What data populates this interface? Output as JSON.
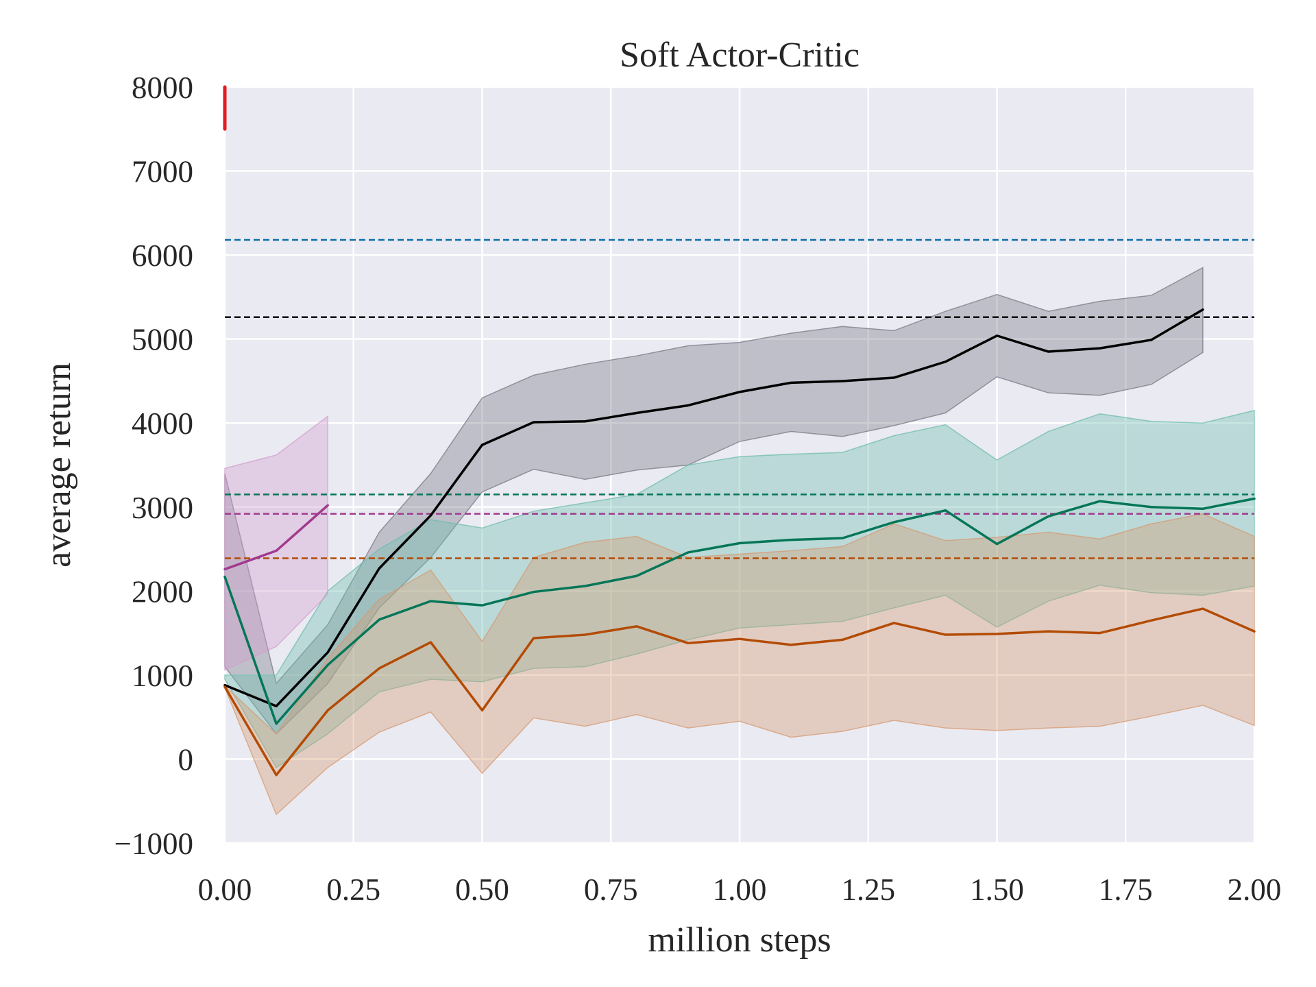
{
  "chart_data": {
    "type": "line",
    "title": "Soft Actor-Critic",
    "xlabel": "million steps",
    "ylabel": "average return",
    "xlim": [
      0,
      2
    ],
    "ylim": [
      -1000,
      8000
    ],
    "xticks": [
      "0.00",
      "0.25",
      "0.50",
      "0.75",
      "1.00",
      "1.25",
      "1.50",
      "1.75",
      "2.00"
    ],
    "yticks": [
      "−1000",
      "0",
      "1000",
      "2000",
      "3000",
      "4000",
      "5000",
      "6000",
      "7000",
      "8000"
    ],
    "grid": true,
    "background": "#eaeaf2",
    "series": [
      {
        "color": "#000000",
        "fill": "#7a7a85",
        "x": [
          0,
          0.1,
          0.2,
          0.3,
          0.4,
          0.5,
          0.6,
          0.7,
          0.8,
          0.9,
          1.0,
          1.1,
          1.2,
          1.3,
          1.4,
          1.5,
          1.6,
          1.7,
          1.8,
          1.9
        ],
        "mean": [
          880,
          630,
          1270,
          2270,
          2900,
          3740,
          4010,
          4020,
          4120,
          4210,
          4370,
          4480,
          4500,
          4540,
          4730,
          5040,
          4850,
          4890,
          4990,
          5350
        ],
        "upper": [
          3400,
          900,
          1600,
          2700,
          3400,
          4300,
          4570,
          4700,
          4800,
          4920,
          4960,
          5070,
          5150,
          5100,
          5330,
          5530,
          5330,
          5450,
          5520,
          5850
        ],
        "lower": [
          1100,
          300,
          900,
          1800,
          2400,
          3180,
          3450,
          3330,
          3440,
          3500,
          3780,
          3900,
          3840,
          3970,
          4120,
          4550,
          4360,
          4330,
          4460,
          4840
        ]
      },
      {
        "color": "#057658",
        "fill": "#6dbcae",
        "x": [
          0,
          0.1,
          0.2,
          0.3,
          0.4,
          0.5,
          0.6,
          0.7,
          0.8,
          0.9,
          1.0,
          1.1,
          1.2,
          1.3,
          1.4,
          1.5,
          1.6,
          1.7,
          1.8,
          1.9,
          2.0
        ],
        "mean": [
          2170,
          420,
          1120,
          1660,
          1880,
          1830,
          1990,
          2060,
          2180,
          2460,
          2570,
          2610,
          2630,
          2820,
          2960,
          2560,
          2890,
          3070,
          3000,
          2980,
          3100
        ],
        "upper": [
          1000,
          1000,
          2000,
          2500,
          2850,
          2750,
          2950,
          3050,
          3150,
          3500,
          3600,
          3630,
          3650,
          3850,
          3980,
          3560,
          3900,
          4110,
          4020,
          4000,
          4150
        ],
        "lower": [
          950,
          -100,
          300,
          800,
          950,
          920,
          1080,
          1100,
          1250,
          1420,
          1560,
          1600,
          1640,
          1800,
          1950,
          1570,
          1880,
          2070,
          1980,
          1950,
          2060
        ]
      },
      {
        "color": "#b34b05",
        "fill": "#d69a72",
        "x": [
          0,
          0.1,
          0.2,
          0.3,
          0.4,
          0.5,
          0.6,
          0.7,
          0.8,
          0.9,
          1.0,
          1.1,
          1.2,
          1.3,
          1.4,
          1.5,
          1.6,
          1.7,
          1.8,
          1.9,
          2.0
        ],
        "mean": [
          860,
          -190,
          580,
          1080,
          1390,
          580,
          1440,
          1480,
          1580,
          1380,
          1430,
          1360,
          1420,
          1620,
          1480,
          1490,
          1520,
          1500,
          1650,
          1790,
          1520
        ],
        "upper": [
          870,
          300,
          1200,
          1900,
          2250,
          1400,
          2400,
          2580,
          2650,
          2400,
          2440,
          2480,
          2530,
          2800,
          2600,
          2640,
          2700,
          2620,
          2800,
          2920,
          2650
        ],
        "lower": [
          850,
          -660,
          -100,
          320,
          560,
          -170,
          490,
          390,
          530,
          370,
          450,
          260,
          330,
          460,
          370,
          340,
          370,
          390,
          510,
          640,
          400
        ]
      },
      {
        "color": "#a03a8d",
        "fill": "#d39fce",
        "x": [
          0,
          0.1,
          0.2
        ],
        "mean": [
          2260,
          2480,
          3020
        ],
        "upper": [
          3460,
          3620,
          4080
        ],
        "lower": [
          1060,
          1340,
          1960
        ]
      },
      {
        "color": "#e41a1c",
        "x": [
          0,
          0
        ],
        "mean": [
          8000,
          7500
        ]
      }
    ],
    "reference_lines": [
      {
        "y": 6180,
        "color": "#0d6fa8",
        "style": "dashed"
      },
      {
        "y": 5260,
        "color": "#000000",
        "style": "dashed"
      },
      {
        "y": 3150,
        "color": "#057658",
        "style": "dashed"
      },
      {
        "y": 2920,
        "color": "#a03a8d",
        "style": "dashed"
      },
      {
        "y": 2390,
        "color": "#b34b05",
        "style": "dashed"
      }
    ]
  }
}
